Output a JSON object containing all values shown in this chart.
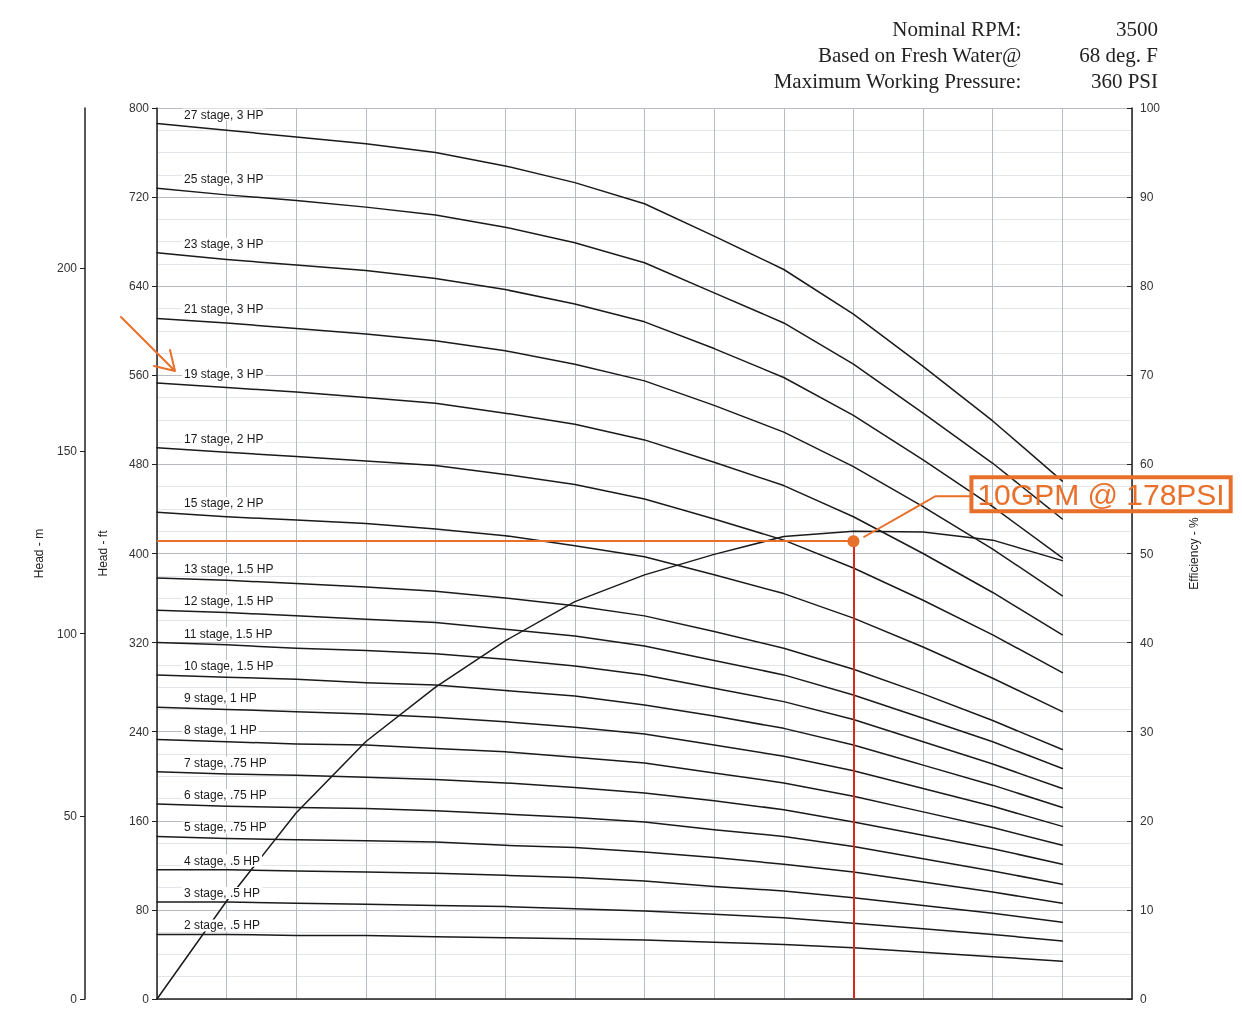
{
  "chart_data": {
    "type": "line",
    "ylabel": "Head - ft",
    "y2label": "Efficiency - %",
    "y3label": "Head - m",
    "annotations": [
      "Nominal RPM:",
      "3500",
      "Based on Fresh Water@",
      "68 deg. F",
      "Maximum Working Pressure:",
      "360 PSI",
      "10GPM @ 178PSI"
    ],
    "categories": [
      null,
      null,
      null,
      null,
      null,
      null,
      null,
      null,
      null,
      null,
      null,
      null,
      null,
      null,
      null
    ],
    "ylim": [
      0,
      800
    ],
    "yticks": [
      0,
      80,
      160,
      240,
      320,
      400,
      480,
      560,
      640,
      720,
      800
    ],
    "y2lim": [
      0,
      100
    ],
    "y2ticks": [
      0,
      10,
      20,
      30,
      40,
      50,
      60,
      70,
      80,
      90,
      100
    ],
    "y3lim": [
      0,
      243.84
    ],
    "y3ticks": [
      0,
      50,
      100,
      150,
      200
    ],
    "grid": true,
    "ref_lines": [
      {
        "axis": "y",
        "value": 411,
        "color": "#e8702a"
      }
    ],
    "series": [
      {
        "name": "27 stage, 3 HP",
        "color": "#1a1a1a",
        "values": [
          786,
          780,
          774,
          768,
          760,
          748,
          733,
          714,
          685,
          655,
          615,
          568,
          519,
          465,
          null
        ]
      },
      {
        "name": "25 stage, 3 HP",
        "color": "#1a1a1a",
        "values": [
          728,
          722,
          717,
          711,
          704,
          693,
          679,
          661,
          634,
          607,
          570,
          526,
          481,
          431,
          null
        ]
      },
      {
        "name": "23 stage, 3 HP",
        "color": "#1a1a1a",
        "values": [
          670,
          664,
          659,
          654,
          647,
          637,
          624,
          608,
          584,
          558,
          524,
          484,
          442,
          396,
          null
        ]
      },
      {
        "name": "21 stage, 3 HP",
        "color": "#1a1a1a",
        "values": [
          611,
          607,
          602,
          597,
          591,
          582,
          570,
          555,
          533,
          509,
          478,
          442,
          404,
          362,
          null
        ]
      },
      {
        "name": "19 stage, 3 HP",
        "color": "#1a1a1a",
        "values": [
          553,
          549,
          545,
          540,
          535,
          526,
          516,
          502,
          482,
          461,
          433,
          400,
          365,
          327,
          null
        ]
      },
      {
        "name": "17 stage, 2 HP",
        "color": "#1a1a1a",
        "values": [
          495,
          491,
          487,
          483,
          479,
          471,
          462,
          449,
          431,
          412,
          387,
          358,
          327,
          293,
          null
        ]
      },
      {
        "name": "15 stage, 2 HP",
        "color": "#1a1a1a",
        "values": [
          437,
          433,
          430,
          427,
          422,
          416,
          407,
          397,
          381,
          364,
          342,
          316,
          288,
          258,
          null
        ]
      },
      {
        "name": "13 stage, 1.5 HP",
        "color": "#1a1a1a",
        "values": [
          378,
          376,
          373,
          370,
          366,
          360,
          353,
          344,
          330,
          315,
          296,
          274,
          250,
          224,
          null
        ]
      },
      {
        "name": "12 stage, 1.5 HP",
        "color": "#1a1a1a",
        "values": [
          349,
          347,
          344,
          341,
          338,
          332,
          326,
          317,
          304,
          291,
          273,
          252,
          231,
          207,
          null
        ]
      },
      {
        "name": "11 stage, 1.5 HP",
        "color": "#1a1a1a",
        "values": [
          320,
          318,
          315,
          313,
          310,
          305,
          299,
          291,
          279,
          267,
          251,
          231,
          211,
          189,
          null
        ]
      },
      {
        "name": "10 stage, 1.5 HP",
        "color": "#1a1a1a",
        "values": [
          291,
          289,
          287,
          284,
          282,
          277,
          272,
          264,
          254,
          243,
          228,
          210,
          192,
          172,
          null
        ]
      },
      {
        "name": "9 stage, 1 HP",
        "color": "#1a1a1a",
        "values": [
          262,
          260,
          258,
          256,
          253,
          249,
          244,
          238,
          228,
          218,
          205,
          189,
          173,
          155,
          null
        ]
      },
      {
        "name": "8 stage, 1 HP",
        "color": "#1a1a1a",
        "values": [
          233,
          231,
          229,
          228,
          225,
          222,
          217,
          212,
          203,
          194,
          182,
          168,
          154,
          138,
          null
        ]
      },
      {
        "name": "7 stage, .75 HP",
        "color": "#1a1a1a",
        "values": [
          204,
          202,
          201,
          199,
          197,
          194,
          190,
          185,
          178,
          170,
          159,
          147,
          135,
          121,
          null
        ]
      },
      {
        "name": "6 stage, .75 HP",
        "color": "#1a1a1a",
        "values": [
          175,
          173,
          172,
          171,
          169,
          166,
          163,
          159,
          152,
          146,
          137,
          126,
          115,
          103,
          null
        ]
      },
      {
        "name": "5 stage, .75 HP",
        "color": "#1a1a1a",
        "values": [
          146,
          144,
          143,
          142,
          141,
          138,
          136,
          132,
          127,
          121,
          114,
          105,
          96,
          86,
          null
        ]
      },
      {
        "name": "4 stage, .5 HP",
        "color": "#1a1a1a",
        "values": [
          116,
          116,
          115,
          114,
          113,
          111,
          109,
          106,
          101,
          97,
          91,
          84,
          77,
          69,
          null
        ]
      },
      {
        "name": "3 stage, .5 HP",
        "color": "#1a1a1a",
        "values": [
          87,
          87,
          86,
          85,
          84,
          83,
          81,
          79,
          76,
          73,
          68,
          63,
          58,
          52,
          null
        ]
      },
      {
        "name": "2 stage, .5 HP",
        "color": "#1a1a1a",
        "values": [
          58,
          58,
          57,
          57,
          56,
          55,
          54,
          53,
          51,
          49,
          46,
          42,
          38,
          34,
          null
        ]
      },
      {
        "color": "#1a1a1a",
        "axis": "y2",
        "values": [
          0,
          11.0,
          20.9,
          28.9,
          35.0,
          40.2,
          44.6,
          47.6,
          49.9,
          51.9,
          52.5,
          52.4,
          51.5,
          49.2,
          null
        ]
      }
    ]
  }
}
